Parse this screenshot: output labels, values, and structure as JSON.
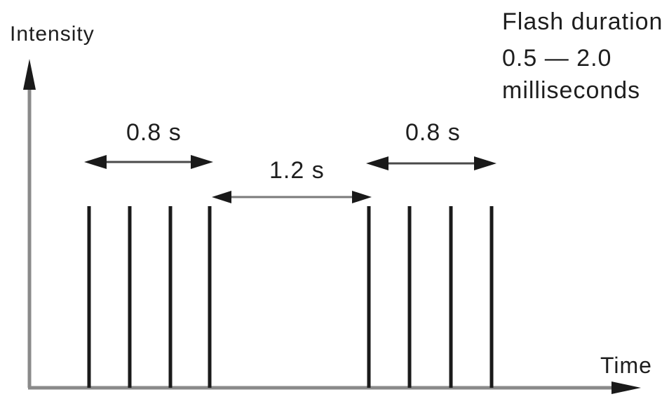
{
  "axes": {
    "y_label": "Intensity",
    "x_label": "Time"
  },
  "note": {
    "lines": [
      "Flash duration",
      "0.5 — 2.0",
      "milliseconds"
    ]
  },
  "intervals": {
    "group_a": "0.8 s",
    "gap": "1.2 s",
    "group_b": "0.8 s"
  },
  "flash_groups": [
    {
      "flash_count": 4
    },
    {
      "flash_count": 4
    }
  ],
  "colors": {
    "axis": "#8a8a8a",
    "flash": "#1a1a1a",
    "text": "#1e1e1e"
  }
}
